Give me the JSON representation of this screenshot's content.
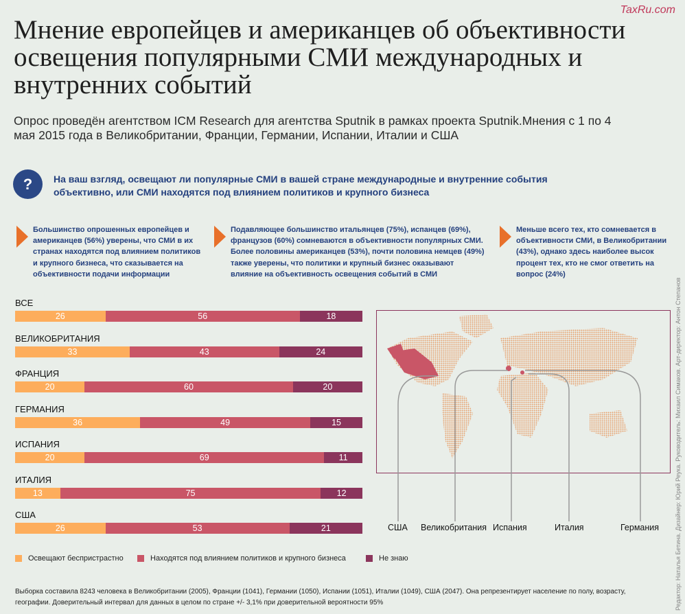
{
  "logo": "TaxRu.com",
  "title": "Мнение европейцев и американцев об объективности освещения популярными СМИ международных и внутренних событий",
  "subtitle": "Опрос проведён агентством ICM Research для агентства Sputnik в рамках проекта Sputnik.Мнения с 1 по 4 мая 2015 года в Великобритании, Франции, Германии, Испании, Италии и США",
  "question_mark": "?",
  "question": "На ваш взгляд, освещают ли популярные СМИ в вашей стране международные и внутренние события объективно, или СМИ находятся под влиянием политиков и крупного бизнеса",
  "notes": [
    "Большинство опрошенных европейцев и американцев (56%) уверены, что СМИ в их странах находятся под влиянием политиков и крупного бизнеса, что сказывается на объективности подачи информации",
    "Подавляющее большинство итальянцев (75%), испанцев (69%), французов (60%) сомневаются в объективности популярных СМИ. Более половины американцев (53%), почти половина немцев (49%) также уверены, что политики и крупный бизнес оказывают влияние на объективность освещения событий в СМИ",
    "Меньше всего тех, кто сомневается в объективности СМИ, в Великобритании (43%), однако здесь наиболее высок процент тех, кто не смог ответить на вопрос (24%)"
  ],
  "colors": {
    "impartial": "#fdad5c",
    "influenced": "#c95667",
    "dont_know": "#8b355c",
    "accent": "#e8702a",
    "text_blue": "#24407e"
  },
  "chart_data": {
    "type": "bar",
    "orientation": "horizontal-stacked-100",
    "categories": [
      "ВСЕ",
      "ВЕЛИКОБРИТАНИЯ",
      "ФРАНЦИЯ",
      "ГЕРМАНИЯ",
      "ИСПАНИЯ",
      "ИТАЛИЯ",
      "США"
    ],
    "series": [
      {
        "name": "Освещают беспристрастно",
        "values": [
          26,
          33,
          20,
          36,
          20,
          13,
          26
        ]
      },
      {
        "name": "Находятся под влиянием политиков и крупного бизнеса",
        "values": [
          56,
          43,
          60,
          49,
          69,
          75,
          53
        ]
      },
      {
        "name": "Не знаю",
        "values": [
          18,
          24,
          20,
          15,
          11,
          12,
          21
        ]
      }
    ],
    "legend": "bottom"
  },
  "map_labels": [
    "США",
    "Великобритания",
    "Испания",
    "Италия",
    "Германия"
  ],
  "footnote": "Выборка составила 8243 человека в Великобритании (2005), Франции (1041), Германии (1050), Испании (1051), Италии (1049), США (2047). Она репрезентирует население по полу, возрасту, географии. Доверительный интервал для данных в целом по стране +/- 3,1% при доверительной вероятности 95%",
  "credits": "Редактор: Наталья Бетина. Дизайнер: Юрий Реука. Руководитель: Михаил Симаков. Арт-директор: Антон Степанов"
}
